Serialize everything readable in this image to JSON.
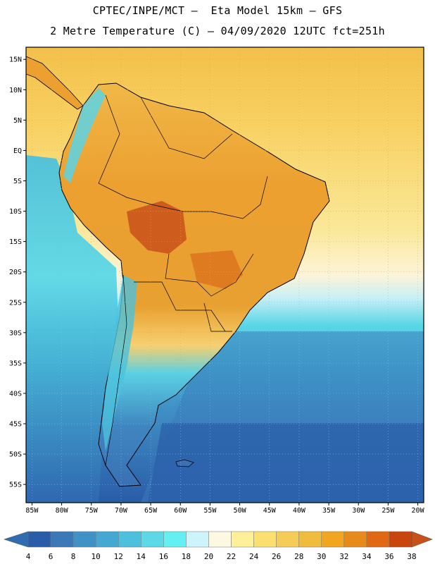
{
  "header": {
    "line1": "CPTEC/INPE/MCT –  Eta Model 15km – GFS",
    "line2": "2 Metre Temperature (C) – 04/09/2020 12UTC fct=251h"
  },
  "map": {
    "lat_labels": [
      "15N",
      "10N",
      "5N",
      "EQ",
      "5S",
      "10S",
      "15S",
      "20S",
      "25S",
      "30S",
      "35S",
      "40S",
      "45S",
      "50S",
      "55S"
    ],
    "lon_labels": [
      "85W",
      "80W",
      "75W",
      "70W",
      "65W",
      "60W",
      "55W",
      "50W",
      "45W",
      "40W",
      "35W",
      "30W",
      "25W",
      "20W"
    ],
    "lat_range": [
      -58,
      17
    ],
    "lon_range": [
      -86,
      -19
    ],
    "grid": true,
    "ocean_north_color": "#f6c850",
    "ocean_south_color": "#2a5ca8",
    "land_warm_color": "#e89a20",
    "land_hot_color": "#c8501a",
    "andes_color": "#46b8d8",
    "patagonia_color": "#3c7ec0"
  },
  "colorbar": {
    "labels": [
      "4",
      "6",
      "8",
      "10",
      "12",
      "14",
      "16",
      "18",
      "20",
      "22",
      "24",
      "26",
      "28",
      "30",
      "32",
      "34",
      "36",
      "38"
    ],
    "colors": [
      "#2a5ca8",
      "#3a78b8",
      "#3f92c6",
      "#44a8d2",
      "#4cc0dc",
      "#5cd8e6",
      "#64f0f2",
      "#cdf4fb",
      "#fdf8e2",
      "#fef098",
      "#fbe070",
      "#f6cc58",
      "#efbc3c",
      "#f0a620",
      "#e88a1a",
      "#e06812",
      "#c8460e"
    ],
    "low_color": "#2e6eb0",
    "high_color": "#c8501a"
  }
}
